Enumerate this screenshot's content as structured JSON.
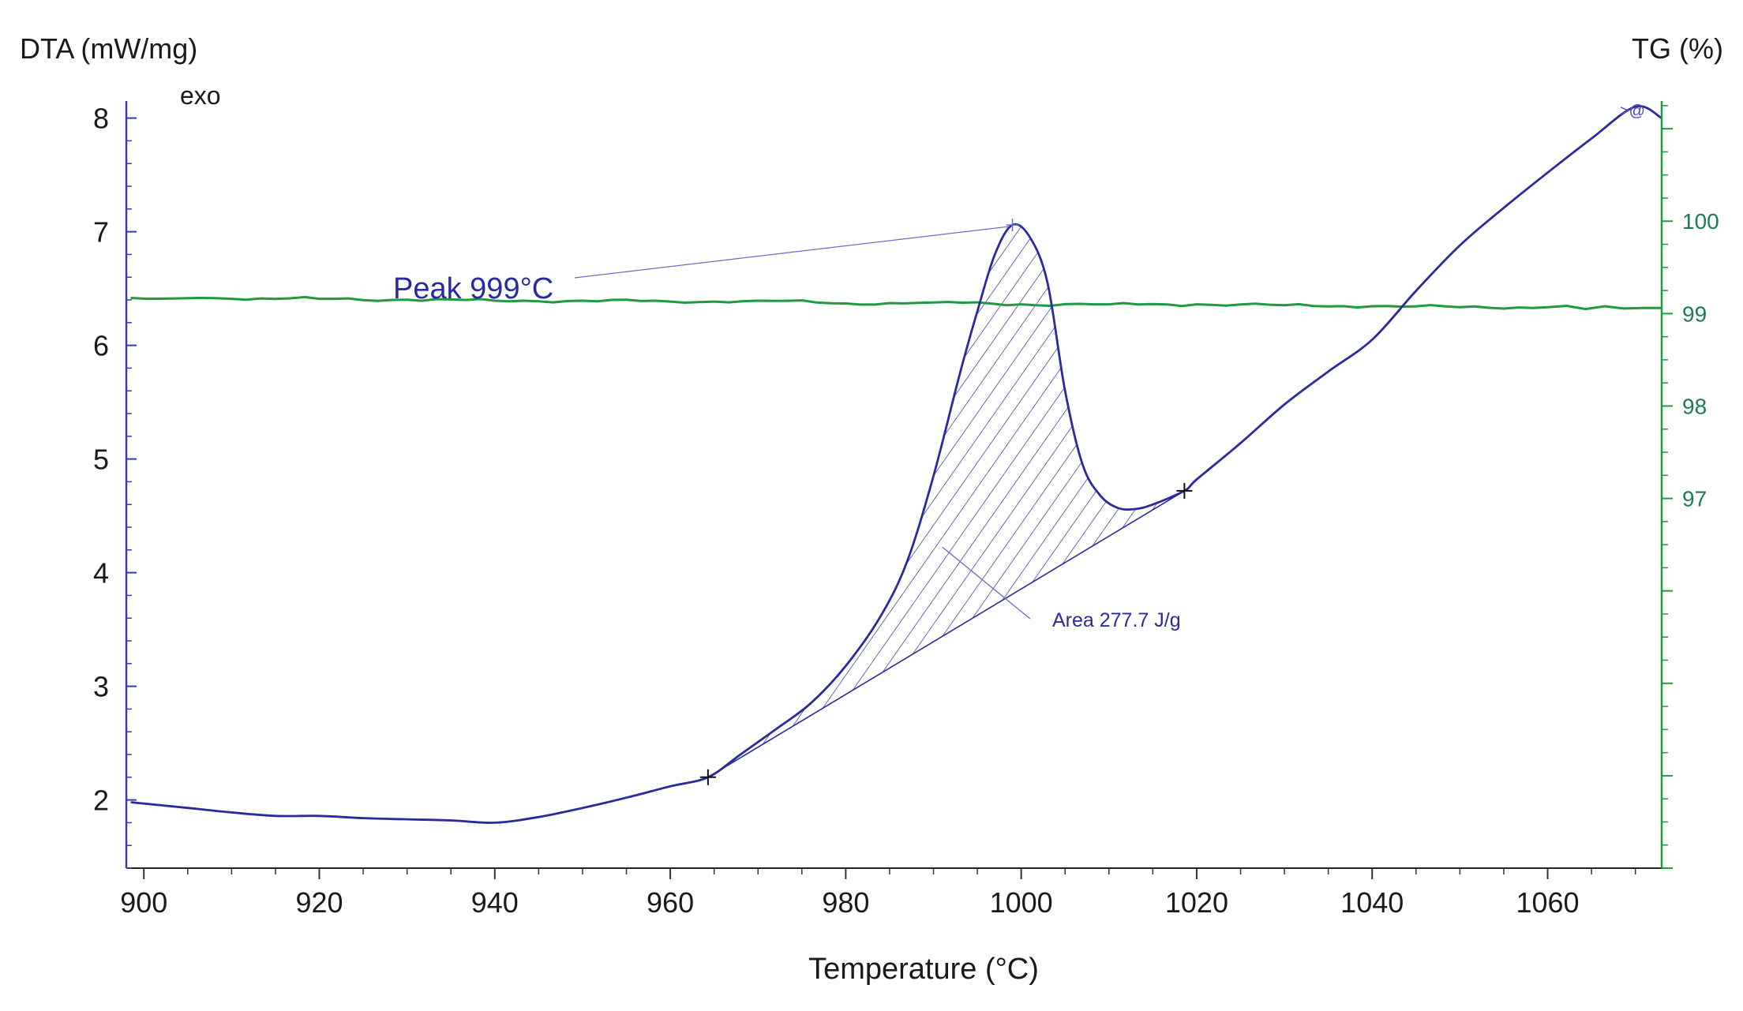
{
  "chart_data": {
    "type": "line",
    "title": "",
    "xlabel": "Temperature (°C)",
    "ylabel_left": "DTA (mW/mg)",
    "ylabel_right": "TG (%)",
    "exo_label": "exo",
    "end_marker": ">@",
    "xlim": [
      898,
      1073
    ],
    "ylim_left": [
      1.4,
      8.15
    ],
    "ylim_right": [
      93.0,
      101.3
    ],
    "x_ticks": [
      900,
      920,
      940,
      960,
      980,
      1000,
      1020,
      1040,
      1060
    ],
    "y_ticks_left": [
      2,
      3,
      4,
      5,
      6,
      7,
      8
    ],
    "y_ticks_right_labeled": [
      97,
      98,
      99,
      100
    ],
    "y_ticks_right_unlabeled": [
      94,
      95,
      96,
      101
    ],
    "colors": {
      "dta": "#2a2a9c",
      "tg": "#1f9a3e",
      "left_axis": "#3a3ab0",
      "right_axis": "#1f9a3e",
      "right_tick_label": "#1a7a5a",
      "text": "#1a1a1a",
      "annotation": "#2a2aa0",
      "hatch": "#2a2a9c"
    },
    "series": [
      {
        "name": "DTA",
        "axis": "left",
        "x": [
          898.5,
          905,
          910,
          915,
          920,
          925,
          930,
          935,
          940,
          945,
          950,
          955,
          960,
          964.3,
          968,
          972,
          976,
          980,
          984,
          987,
          990,
          993,
          995,
          997,
          999,
          1001,
          1003,
          1005,
          1007,
          1009,
          1011,
          1013,
          1015,
          1018.6,
          1020,
          1025,
          1030,
          1035,
          1040,
          1045,
          1050,
          1055,
          1060,
          1065,
          1070,
          1073
        ],
        "y": [
          1.98,
          1.93,
          1.89,
          1.86,
          1.86,
          1.84,
          1.83,
          1.82,
          1.8,
          1.85,
          1.93,
          2.02,
          2.12,
          2.2,
          2.4,
          2.62,
          2.85,
          3.18,
          3.62,
          4.1,
          4.85,
          5.75,
          6.3,
          6.8,
          7.06,
          6.95,
          6.55,
          5.6,
          4.95,
          4.68,
          4.57,
          4.56,
          4.6,
          4.72,
          4.82,
          5.14,
          5.48,
          5.77,
          6.05,
          6.48,
          6.88,
          7.21,
          7.52,
          7.82,
          8.1,
          8.0
        ]
      },
      {
        "name": "TG",
        "axis": "right",
        "x": [
          898.5,
          910,
          920,
          930,
          940,
          950,
          960,
          970,
          980,
          990,
          1000,
          1010,
          1020,
          1030,
          1040,
          1050,
          1060,
          1073
        ],
        "y": [
          99.17,
          99.16,
          99.16,
          99.15,
          99.14,
          99.14,
          99.13,
          99.14,
          99.11,
          99.12,
          99.1,
          99.1,
          99.1,
          99.09,
          99.08,
          99.07,
          99.07,
          99.06
        ]
      }
    ],
    "baseline": {
      "x": [
        964.3,
        1018.6
      ],
      "y": [
        2.2,
        4.72
      ]
    },
    "peak": {
      "x": 999,
      "y": 7.06,
      "label": "Peak 999°C"
    },
    "area": {
      "label": "Area 277.7 J/g",
      "value": 277.7,
      "unit": "J/g"
    }
  }
}
